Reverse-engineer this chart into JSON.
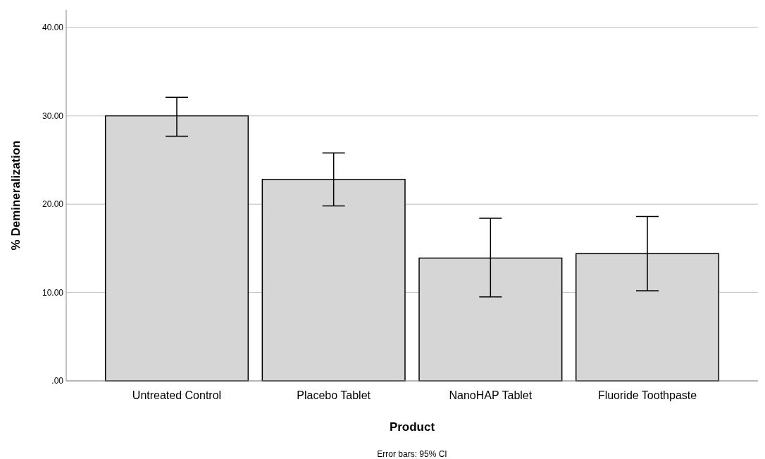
{
  "chart_data": {
    "type": "bar",
    "xlabel": "Product",
    "ylabel": "% Demineralization",
    "categories": [
      "Untreated Control",
      "Placebo Tablet",
      "NanoHAP Tablet",
      "Fluoride Toothpaste"
    ],
    "values": [
      30.0,
      22.8,
      13.9,
      14.4
    ],
    "errors": [
      [
        27.7,
        32.1
      ],
      [
        19.8,
        25.8
      ],
      [
        9.5,
        18.4
      ],
      [
        10.2,
        18.6
      ]
    ],
    "color": "#d6d6d6",
    "ylim": [
      0,
      42
    ],
    "yticks": [
      {
        "value": 0,
        "label": ".00"
      },
      {
        "value": 10,
        "label": "10.00"
      },
      {
        "value": 20,
        "label": "20.00"
      },
      {
        "value": 30,
        "label": "30.00"
      },
      {
        "value": 40,
        "label": "40.00"
      }
    ],
    "grid": "y",
    "annotations": [
      "Error bars: 95% CI"
    ]
  }
}
